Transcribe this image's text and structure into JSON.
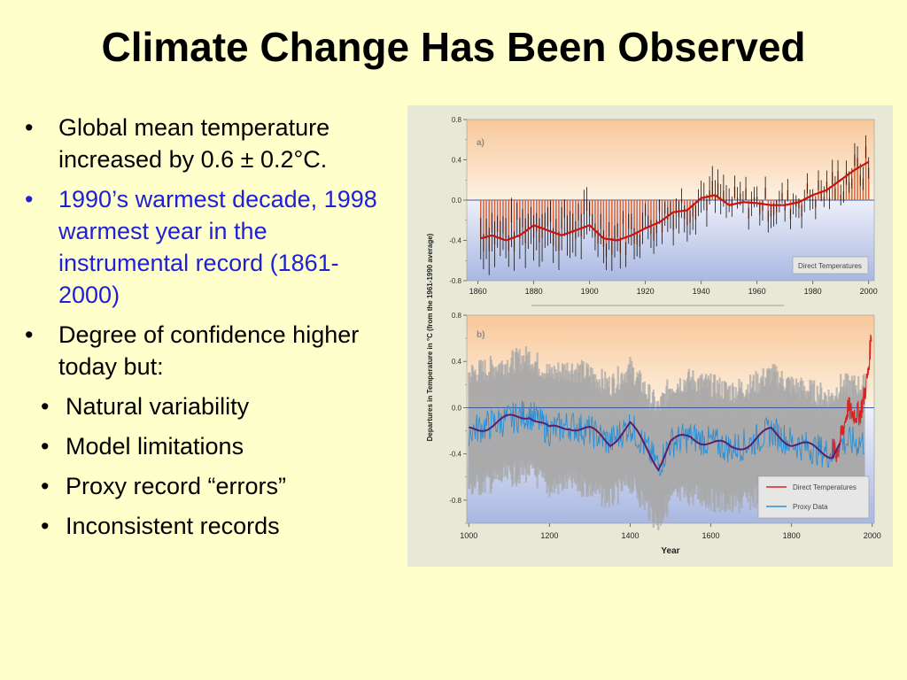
{
  "slide": {
    "title": "Climate Change Has Been Observed",
    "bullets": [
      {
        "text": "Global mean temperature increased by 0.6 ± 0.2°C.",
        "color": "#000000"
      },
      {
        "text": "1990’s warmest decade, 1998 warmest year in the instrumental record (1861-2000)",
        "color": "#1f1fd6"
      },
      {
        "text": "Degree of confidence higher today but:",
        "color": "#000000"
      }
    ],
    "sub_bullets": [
      "Natural variability",
      "Model limitations",
      "Proxy record “errors”",
      "Inconsistent records"
    ],
    "bullet_symbol": "•"
  },
  "chart_data": [
    {
      "type": "bar",
      "panel_label": "a)",
      "xlim": [
        1856,
        2002
      ],
      "ylim": [
        -0.8,
        0.8
      ],
      "x_ticks": [
        1860,
        1880,
        1900,
        1920,
        1940,
        1960,
        1980,
        2000
      ],
      "y_ticks": [
        "0.8",
        "0.4",
        "0.0",
        "-0.4",
        "-0.8"
      ],
      "legend": [
        "Direct Temperatures"
      ],
      "colors": {
        "bars": "#d9612f",
        "smooth": "#cc1111",
        "error_bars": "#111111"
      },
      "smoothed_series": {
        "x": [
          1861,
          1865,
          1870,
          1875,
          1880,
          1885,
          1890,
          1895,
          1900,
          1905,
          1910,
          1915,
          1920,
          1925,
          1930,
          1935,
          1940,
          1945,
          1950,
          1955,
          1960,
          1965,
          1970,
          1975,
          1980,
          1985,
          1990,
          1995,
          2000
        ],
        "y": [
          -0.38,
          -0.35,
          -0.4,
          -0.35,
          -0.25,
          -0.3,
          -0.35,
          -0.3,
          -0.25,
          -0.38,
          -0.4,
          -0.35,
          -0.28,
          -0.22,
          -0.12,
          -0.1,
          0.02,
          0.05,
          -0.05,
          -0.02,
          -0.03,
          -0.05,
          -0.05,
          -0.02,
          0.05,
          0.1,
          0.2,
          0.3,
          0.38
        ]
      }
    },
    {
      "type": "line",
      "panel_label": "b)",
      "xlim": [
        995,
        2005
      ],
      "ylim": [
        -1.0,
        0.8
      ],
      "x_ticks": [
        1000,
        1200,
        1400,
        1600,
        1800,
        2000
      ],
      "y_ticks": [
        "0.8",
        "0.4",
        "0.0",
        "-0.4",
        "-0.8"
      ],
      "xlabel": "Year",
      "shared_ylabel": "Departures in Temperature in °C (from the 1961-1990 average)",
      "series": [
        {
          "name": "Direct Temperatures",
          "color": "#dd2222"
        },
        {
          "name": "Proxy Data",
          "color": "#2b8fd6"
        }
      ],
      "smoothed_proxy": {
        "x": [
          1000,
          1050,
          1100,
          1150,
          1200,
          1250,
          1300,
          1350,
          1400,
          1450,
          1470,
          1500,
          1550,
          1600,
          1650,
          1700,
          1750,
          1800,
          1850,
          1900,
          1920
        ],
        "y": [
          -0.2,
          -0.15,
          -0.1,
          -0.05,
          -0.2,
          -0.15,
          -0.2,
          -0.3,
          -0.15,
          -0.4,
          -0.5,
          -0.3,
          -0.25,
          -0.3,
          -0.35,
          -0.3,
          -0.2,
          -0.3,
          -0.35,
          -0.4,
          -0.3
        ]
      },
      "direct_series": {
        "x": [
          1900,
          1910,
          1920,
          1930,
          1940,
          1950,
          1960,
          1970,
          1980,
          1990,
          1998
        ],
        "y": [
          -0.35,
          -0.4,
          -0.3,
          -0.15,
          0.0,
          -0.05,
          -0.05,
          -0.05,
          0.1,
          0.3,
          0.65
        ]
      },
      "uncertainty_band_color": "#a8a8a8"
    }
  ]
}
